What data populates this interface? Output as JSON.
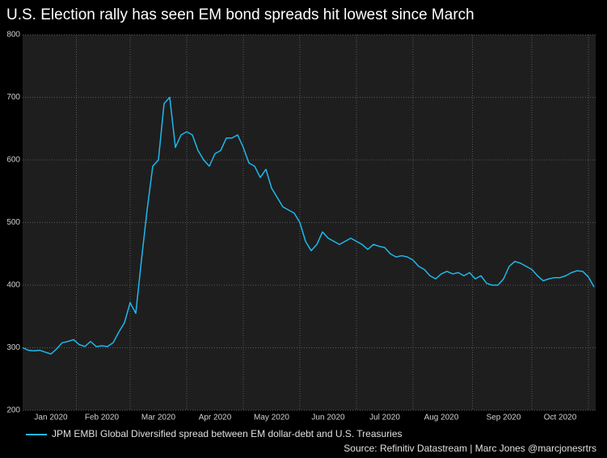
{
  "chart_data": {
    "type": "line",
    "title": "U.S. Election rally has seen EM bond spreads hit lowest since March",
    "source": "Source: Refinitiv Datastream | Marc Jones @marcjonesrtrs",
    "categories": [
      null,
      null,
      null,
      null,
      null,
      "Jan 2020",
      null,
      null,
      null,
      null,
      null,
      null,
      null,
      null,
      "Feb 2020",
      null,
      null,
      null,
      null,
      null,
      null,
      null,
      null,
      null,
      "Mar 2020",
      null,
      null,
      null,
      null,
      null,
      null,
      null,
      null,
      null,
      "Apr 2020",
      null,
      null,
      null,
      null,
      null,
      null,
      null,
      null,
      null,
      "May 2020",
      null,
      null,
      null,
      null,
      null,
      null,
      null,
      null,
      null,
      "Jun 2020",
      null,
      null,
      null,
      null,
      null,
      null,
      null,
      null,
      null,
      "Jul 2020",
      null,
      null,
      null,
      null,
      null,
      null,
      null,
      null,
      null,
      "Aug 2020",
      null,
      null,
      null,
      null,
      null,
      null,
      null,
      null,
      null,
      null,
      "Sep 2020",
      null,
      null,
      null,
      null,
      null,
      null,
      null,
      null,
      null,
      "Oct 2020",
      null,
      null,
      null,
      null,
      null,
      null
    ],
    "series": [
      {
        "name": "JPM EMBI Global Diversified spread between EM dollar-debt and U.S. Treasuries",
        "color": "#1fb8ee",
        "values": [
          300,
          296,
          295,
          296,
          293,
          290,
          298,
          308,
          310,
          313,
          305,
          302,
          310,
          302,
          303,
          302,
          308,
          325,
          340,
          372,
          355,
          440,
          520,
          590,
          600,
          690,
          700,
          620,
          640,
          645,
          640,
          615,
          600,
          590,
          610,
          615,
          635,
          635,
          640,
          620,
          595,
          590,
          572,
          585,
          555,
          540,
          525,
          520,
          515,
          500,
          470,
          455,
          465,
          485,
          475,
          470,
          465,
          470,
          475,
          470,
          465,
          457,
          465,
          462,
          460,
          450,
          445,
          447,
          445,
          440,
          430,
          425,
          415,
          410,
          418,
          422,
          418,
          420,
          415,
          420,
          410,
          415,
          403,
          400,
          400,
          410,
          430,
          438,
          435,
          430,
          425,
          415,
          407,
          410,
          412,
          412,
          415,
          420,
          423,
          422,
          413,
          397
        ]
      }
    ],
    "ylim": [
      200,
      800
    ],
    "yticks": [
      200,
      300,
      400,
      500,
      600,
      700,
      800
    ],
    "grid": true
  }
}
